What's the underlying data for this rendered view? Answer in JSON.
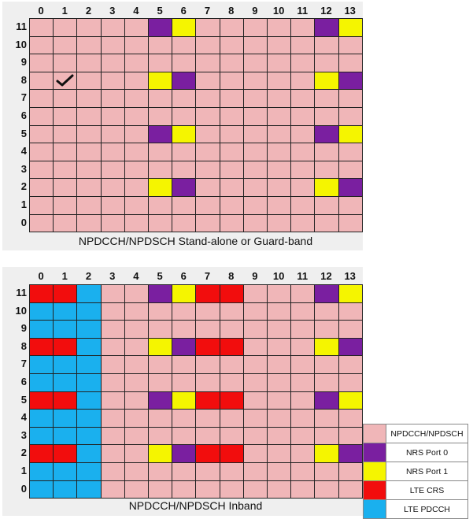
{
  "colors": {
    "pdsch": "#f0b6b8",
    "nrs0": "#7a1fa0",
    "nrs1": "#f5f500",
    "crs": "#f20d0d",
    "pdcch": "#1ab0ee"
  },
  "columns": [
    "0",
    "1",
    "2",
    "3",
    "4",
    "5",
    "6",
    "7",
    "8",
    "9",
    "10",
    "11",
    "12",
    "13"
  ],
  "rows_top_to_bottom": [
    "11",
    "10",
    "9",
    "8",
    "7",
    "6",
    "5",
    "4",
    "3",
    "2",
    "1",
    "0"
  ],
  "legend": [
    {
      "key": "pdsch",
      "label": "NPDCCH/NPDSCH"
    },
    {
      "key": "nrs0",
      "label": "NRS Port 0"
    },
    {
      "key": "nrs1",
      "label": "NRS Port 1"
    },
    {
      "key": "crs",
      "label": "LTE CRS"
    },
    {
      "key": "pdcch",
      "label": "LTE PDCCH"
    }
  ],
  "panels": [
    {
      "caption": "NPDCCH/NPDSCH Stand-alone or Guard-band",
      "default": "pdsch",
      "special": [
        {
          "row": 11,
          "col": 5,
          "type": "nrs0"
        },
        {
          "row": 11,
          "col": 6,
          "type": "nrs1"
        },
        {
          "row": 11,
          "col": 12,
          "type": "nrs0"
        },
        {
          "row": 11,
          "col": 13,
          "type": "nrs1"
        },
        {
          "row": 8,
          "col": 5,
          "type": "nrs1"
        },
        {
          "row": 8,
          "col": 6,
          "type": "nrs0"
        },
        {
          "row": 8,
          "col": 12,
          "type": "nrs1"
        },
        {
          "row": 8,
          "col": 13,
          "type": "nrs0"
        },
        {
          "row": 5,
          "col": 5,
          "type": "nrs0"
        },
        {
          "row": 5,
          "col": 6,
          "type": "nrs1"
        },
        {
          "row": 5,
          "col": 12,
          "type": "nrs0"
        },
        {
          "row": 5,
          "col": 13,
          "type": "nrs1"
        },
        {
          "row": 2,
          "col": 5,
          "type": "nrs1"
        },
        {
          "row": 2,
          "col": 6,
          "type": "nrs0"
        },
        {
          "row": 2,
          "col": 12,
          "type": "nrs1"
        },
        {
          "row": 2,
          "col": 13,
          "type": "nrs0"
        }
      ],
      "check_mark": {
        "row": 8,
        "col": 1
      }
    },
    {
      "caption": "NPDCCH/NPDSCH Inband",
      "default": "pdsch",
      "pdcch_cols": [
        0,
        1,
        2
      ],
      "special": [
        {
          "row": 11,
          "col": 0,
          "type": "crs"
        },
        {
          "row": 11,
          "col": 1,
          "type": "crs"
        },
        {
          "row": 11,
          "col": 5,
          "type": "nrs0"
        },
        {
          "row": 11,
          "col": 6,
          "type": "nrs1"
        },
        {
          "row": 11,
          "col": 7,
          "type": "crs"
        },
        {
          "row": 11,
          "col": 8,
          "type": "crs"
        },
        {
          "row": 11,
          "col": 12,
          "type": "nrs0"
        },
        {
          "row": 11,
          "col": 13,
          "type": "nrs1"
        },
        {
          "row": 8,
          "col": 0,
          "type": "crs"
        },
        {
          "row": 8,
          "col": 1,
          "type": "crs"
        },
        {
          "row": 8,
          "col": 5,
          "type": "nrs1"
        },
        {
          "row": 8,
          "col": 6,
          "type": "nrs0"
        },
        {
          "row": 8,
          "col": 7,
          "type": "crs"
        },
        {
          "row": 8,
          "col": 8,
          "type": "crs"
        },
        {
          "row": 8,
          "col": 12,
          "type": "nrs1"
        },
        {
          "row": 8,
          "col": 13,
          "type": "nrs0"
        },
        {
          "row": 5,
          "col": 0,
          "type": "crs"
        },
        {
          "row": 5,
          "col": 1,
          "type": "crs"
        },
        {
          "row": 5,
          "col": 5,
          "type": "nrs0"
        },
        {
          "row": 5,
          "col": 6,
          "type": "nrs1"
        },
        {
          "row": 5,
          "col": 7,
          "type": "crs"
        },
        {
          "row": 5,
          "col": 8,
          "type": "crs"
        },
        {
          "row": 5,
          "col": 12,
          "type": "nrs0"
        },
        {
          "row": 5,
          "col": 13,
          "type": "nrs1"
        },
        {
          "row": 2,
          "col": 0,
          "type": "crs"
        },
        {
          "row": 2,
          "col": 1,
          "type": "crs"
        },
        {
          "row": 2,
          "col": 5,
          "type": "nrs1"
        },
        {
          "row": 2,
          "col": 6,
          "type": "nrs0"
        },
        {
          "row": 2,
          "col": 7,
          "type": "crs"
        },
        {
          "row": 2,
          "col": 8,
          "type": "crs"
        },
        {
          "row": 2,
          "col": 12,
          "type": "nrs1"
        },
        {
          "row": 2,
          "col": 13,
          "type": "nrs0"
        }
      ]
    }
  ]
}
